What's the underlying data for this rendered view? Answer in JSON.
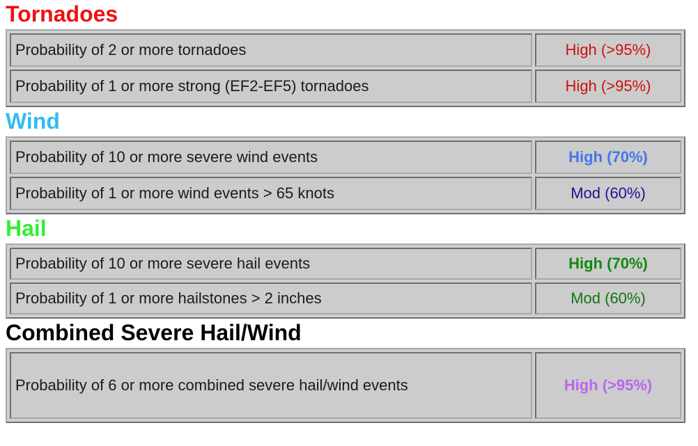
{
  "colors": {
    "tornado_heading": "#ee1111",
    "wind_heading": "#33bbee",
    "hail_heading": "#33ee33",
    "combined_heading": "#000000",
    "tornado_value": "#cc1111",
    "wind_high": "#4477ee",
    "wind_mod": "#221199",
    "hail_high": "#118811",
    "hail_mod": "#117711",
    "combined_value": "#bb66ee"
  },
  "sections": {
    "tornadoes": {
      "heading": "Tornadoes",
      "rows": [
        {
          "label": "Probability of 2 or more tornadoes",
          "value": "High (>95%)"
        },
        {
          "label": "Probability of 1 or more strong (EF2-EF5) tornadoes",
          "value": "High (>95%)"
        }
      ]
    },
    "wind": {
      "heading": "Wind",
      "rows": [
        {
          "label": "Probability of 10 or more severe wind events",
          "value": "High (70%)"
        },
        {
          "label": "Probability of 1 or more wind events > 65 knots",
          "value": "Mod (60%)"
        }
      ]
    },
    "hail": {
      "heading": "Hail",
      "rows": [
        {
          "label": "Probability of 10 or more severe hail events",
          "value": "High (70%)"
        },
        {
          "label": "Probability of 1 or more hailstones > 2 inches",
          "value": "Mod (60%)"
        }
      ]
    },
    "combined": {
      "heading": "Combined Severe Hail/Wind",
      "rows": [
        {
          "label": "Probability of 6 or more combined severe hail/wind events",
          "value": "High (>95%)"
        }
      ]
    }
  }
}
